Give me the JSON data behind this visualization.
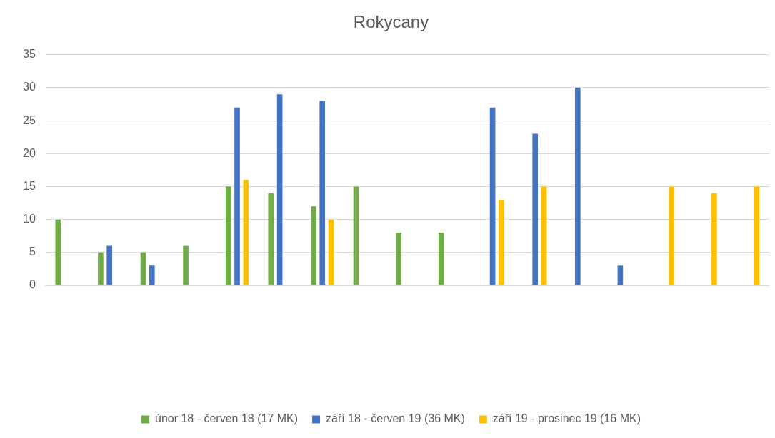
{
  "chart_data": {
    "type": "bar",
    "title": "Rokycany",
    "categories": [
      null,
      null,
      null,
      null,
      null,
      null,
      null,
      null,
      null,
      null,
      null,
      null,
      null,
      null,
      null,
      null,
      null
    ],
    "series": [
      {
        "name": "únor 18 - červen 18 (17 MK)",
        "color": "#70ad47",
        "values": [
          10,
          5,
          5,
          6,
          15,
          14,
          12,
          15,
          8,
          8,
          null,
          null,
          null,
          null,
          null,
          null,
          null
        ]
      },
      {
        "name": "září 18 - červen 19 (36 MK)",
        "color": "#4472c4",
        "values": [
          null,
          6,
          3,
          null,
          27,
          29,
          28,
          null,
          null,
          null,
          27,
          23,
          30,
          3,
          null,
          null,
          null
        ]
      },
      {
        "name": "září 19 - prosinec 19 (16 MK)",
        "color": "#ffc000",
        "values": [
          null,
          null,
          null,
          null,
          16,
          null,
          10,
          null,
          null,
          null,
          13,
          15,
          null,
          null,
          15,
          14,
          15
        ]
      }
    ],
    "ylim": [
      0,
      35
    ],
    "yticks": [
      0,
      5,
      10,
      15,
      20,
      25,
      30,
      35
    ],
    "grid": "y",
    "legend": "bottom"
  }
}
